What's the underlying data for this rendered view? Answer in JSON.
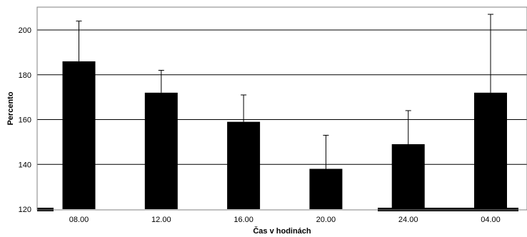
{
  "chart_data": {
    "type": "bar",
    "categories": [
      "08.00",
      "12.00",
      "16.00",
      "20.00",
      "24.00",
      "04.00"
    ],
    "values": [
      186,
      172,
      159,
      138,
      149,
      172
    ],
    "error_upper": [
      204,
      182,
      171,
      153,
      164,
      207
    ],
    "xlabel": "Čas v hodinách",
    "ylabel": "Percento",
    "ylim": [
      120,
      215
    ],
    "yticks": [
      120,
      140,
      160,
      180,
      200
    ],
    "grid": true,
    "bar_color": "#000000",
    "gridline_color": "#000000"
  }
}
